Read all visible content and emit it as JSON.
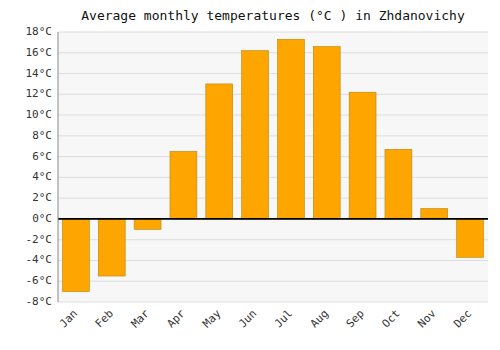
{
  "chart_data": {
    "type": "bar",
    "title": "Average monthly temperatures (°C ) in Zhdanovichy",
    "categories": [
      "Jan",
      "Feb",
      "Mar",
      "Apr",
      "May",
      "Jun",
      "Jul",
      "Aug",
      "Sep",
      "Oct",
      "Nov",
      "Dec"
    ],
    "values": [
      -7.0,
      -5.5,
      -1.0,
      6.5,
      13.0,
      16.2,
      17.3,
      16.6,
      12.2,
      6.7,
      1.0,
      -3.7
    ],
    "color": "#FFA500",
    "ylim": [
      -8,
      18
    ],
    "yticks": [
      {
        "value": -8,
        "label": "-8°C"
      },
      {
        "value": -6,
        "label": "-6°C"
      },
      {
        "value": -4,
        "label": "-4°C"
      },
      {
        "value": -2,
        "label": "-2°C"
      },
      {
        "value": 0,
        "label": "0°C"
      },
      {
        "value": 2,
        "label": "2°C"
      },
      {
        "value": 4,
        "label": "4°C"
      },
      {
        "value": 6,
        "label": "6°C"
      },
      {
        "value": 8,
        "label": "8°C"
      },
      {
        "value": 10,
        "label": "10°C"
      },
      {
        "value": 12,
        "label": "12°C"
      },
      {
        "value": 14,
        "label": "14°C"
      },
      {
        "value": 16,
        "label": "16°C"
      },
      {
        "value": 18,
        "label": "18°C"
      }
    ],
    "grid": true
  }
}
